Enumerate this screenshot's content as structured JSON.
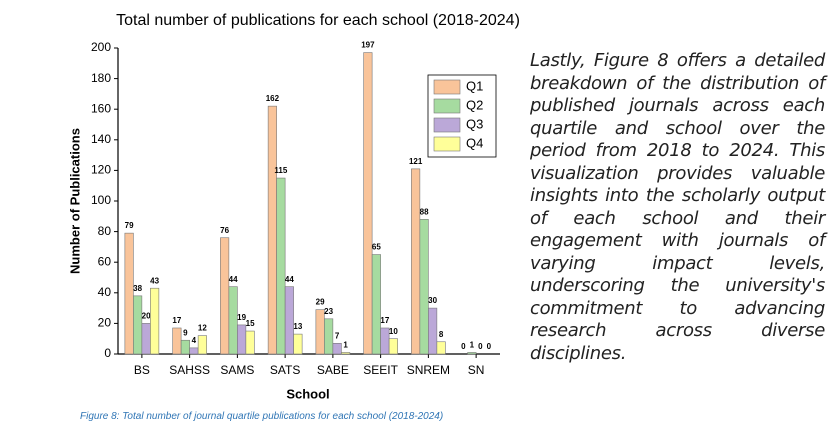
{
  "chart_data": {
    "type": "bar",
    "title": "Total number of publications for each school (2018-2024)",
    "x_label": "School",
    "y_label": "Number of Publications",
    "categories": [
      "BS",
      "SAHSS",
      "SAMS",
      "SATS",
      "SABE",
      "SEEIT",
      "SNREM",
      "SN"
    ],
    "series": [
      {
        "name": "Q1",
        "color": "#f9c49a",
        "values": [
          79,
          17,
          76,
          162,
          29,
          197,
          121,
          0
        ]
      },
      {
        "name": "Q2",
        "color": "#a6dba0",
        "values": [
          38,
          9,
          44,
          115,
          23,
          65,
          88,
          1
        ]
      },
      {
        "name": "Q3",
        "color": "#bba8d8",
        "values": [
          20,
          4,
          19,
          44,
          7,
          17,
          30,
          0
        ]
      },
      {
        "name": "Q4",
        "color": "#ffff99",
        "values": [
          43,
          12,
          15,
          13,
          1,
          10,
          8,
          0
        ]
      }
    ],
    "ylim": [
      0,
      200
    ],
    "yticks": [
      0,
      20,
      40,
      60,
      80,
      100,
      120,
      140,
      160,
      180,
      200
    ],
    "legend": "upper right"
  },
  "paragraph": "Lastly, Figure 8 offers a detailed breakdown of the distribution of published journals across each quartile and school over the period from 2018 to 2024. This visualization provides valuable insights into the scholarly output of each school and their engagement with journals of varying impact levels, underscoring the university's commitment to advancing research across diverse disciplines.",
  "caption": "Figure 8: Total number of journal quartile publications for each school (2018-2024)"
}
